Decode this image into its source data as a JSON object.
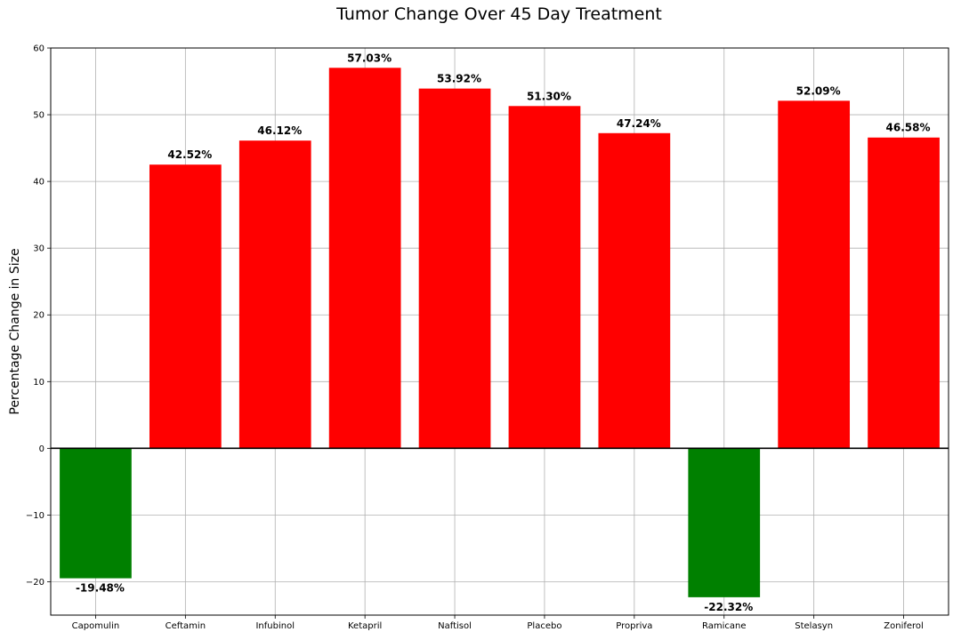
{
  "chart_data": {
    "type": "bar",
    "title": "Tumor Change Over 45 Day Treatment",
    "xlabel": "",
    "ylabel": "Percentage Change in Size",
    "categories": [
      "Capomulin",
      "Ceftamin",
      "Infubinol",
      "Ketapril",
      "Naftisol",
      "Placebo",
      "Propriva",
      "Ramicane",
      "Stelasyn",
      "Zoniferol"
    ],
    "values": [
      -19.48,
      42.52,
      46.12,
      57.03,
      53.92,
      51.3,
      47.24,
      -22.32,
      52.09,
      46.58
    ],
    "data_labels": [
      "-19.48%",
      "42.52%",
      "46.12%",
      "57.03%",
      "53.92%",
      "51.30%",
      "47.24%",
      "-22.32%",
      "52.09%",
      "46.58%"
    ],
    "ylim": [
      -25,
      60
    ],
    "yticks": [
      -20,
      -10,
      0,
      10,
      20,
      30,
      40,
      50,
      60
    ],
    "ytick_labels": [
      "−20",
      "−10",
      "0",
      "10",
      "20",
      "30",
      "40",
      "50",
      "60"
    ],
    "grid": true,
    "colors": {
      "positive": "#ff0000",
      "negative": "#008000"
    }
  }
}
